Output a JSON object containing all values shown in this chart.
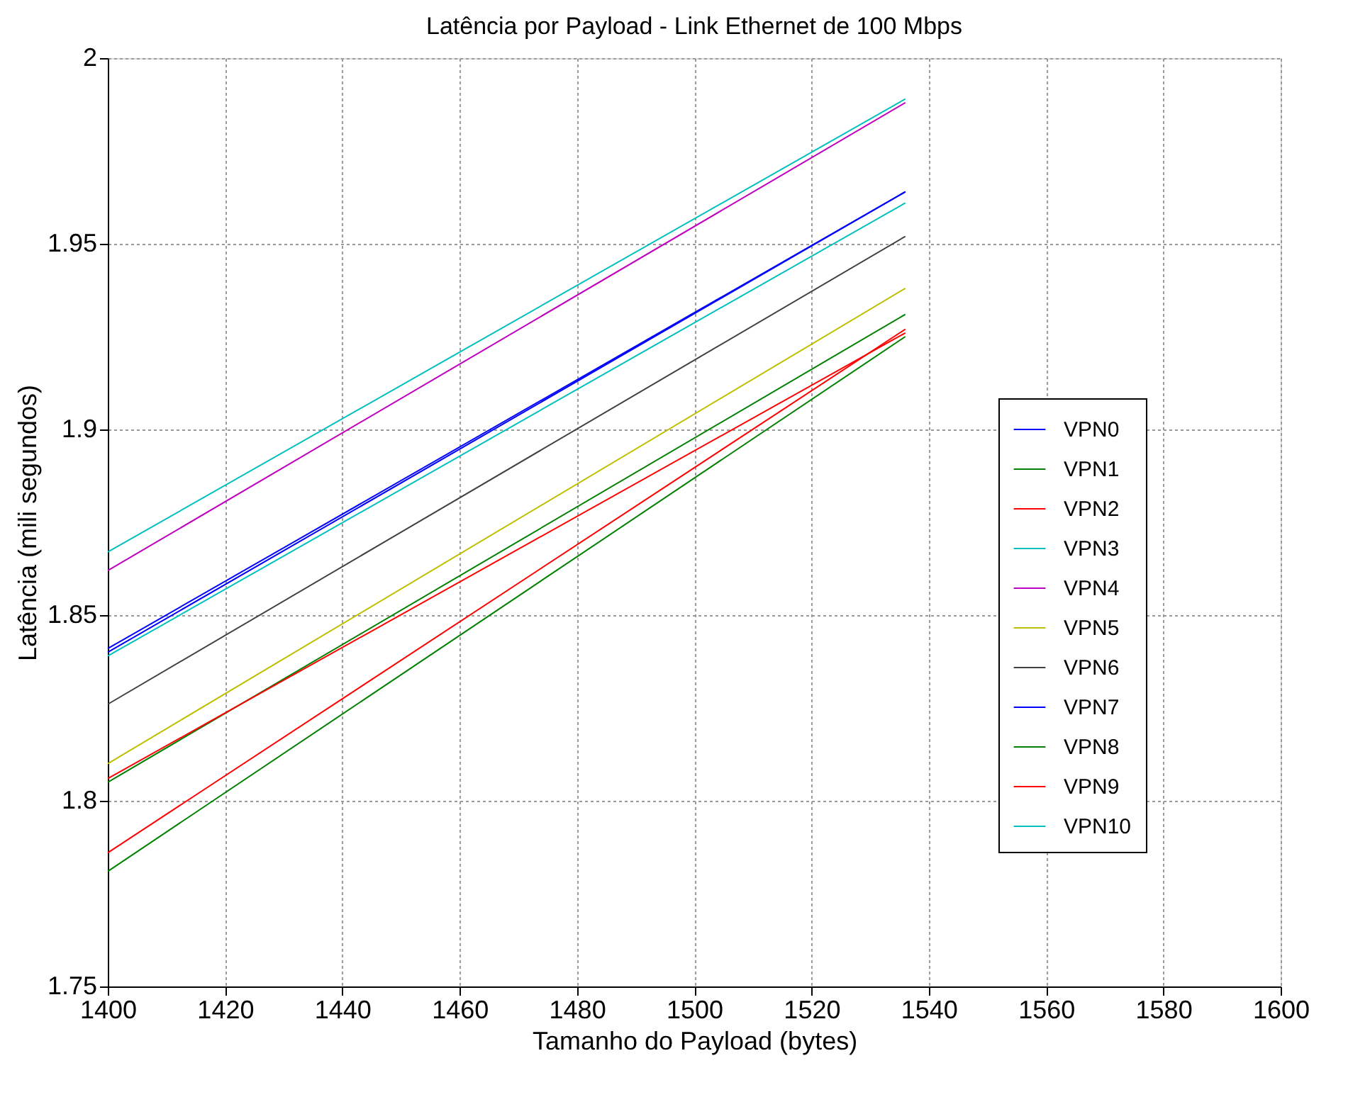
{
  "chart_data": {
    "type": "line",
    "title": "Latência por Payload - Link Ethernet de 100 Mbps",
    "xlabel": "Tamanho do Payload (bytes)",
    "ylabel": "Latência (mili segundos)",
    "x": [
      1400,
      1536
    ],
    "series": [
      {
        "name": "VPN0",
        "color": "#0000ff",
        "values": [
          1.84,
          1.964
        ]
      },
      {
        "name": "VPN1",
        "color": "#008000",
        "values": [
          1.805,
          1.931
        ]
      },
      {
        "name": "VPN2",
        "color": "#ff0000",
        "values": [
          1.806,
          1.926
        ]
      },
      {
        "name": "VPN3",
        "color": "#00bfbf",
        "values": [
          1.867,
          1.989
        ]
      },
      {
        "name": "VPN4",
        "color": "#bf00bf",
        "values": [
          1.862,
          1.988
        ]
      },
      {
        "name": "VPN5",
        "color": "#bfbf00",
        "values": [
          1.81,
          1.938
        ]
      },
      {
        "name": "VPN6",
        "color": "#404040",
        "values": [
          1.826,
          1.952
        ]
      },
      {
        "name": "VPN7",
        "color": "#0000ff",
        "values": [
          1.841,
          1.964
        ]
      },
      {
        "name": "VPN8",
        "color": "#008000",
        "values": [
          1.781,
          1.925
        ]
      },
      {
        "name": "VPN9",
        "color": "#ff0000",
        "values": [
          1.786,
          1.927
        ]
      },
      {
        "name": "VPN10",
        "color": "#00bfbf",
        "values": [
          1.839,
          1.961
        ]
      }
    ],
    "xlim": [
      1400,
      1600
    ],
    "xticks": [
      1400,
      1420,
      1440,
      1460,
      1480,
      1500,
      1520,
      1540,
      1560,
      1580,
      1600
    ],
    "ylim": [
      1.75,
      2
    ],
    "yticks": [
      1.75,
      1.8,
      1.85,
      1.9,
      1.95,
      2
    ],
    "grid": true,
    "legend": "bottom right",
    "marker": "none",
    "line_style": "solid"
  }
}
